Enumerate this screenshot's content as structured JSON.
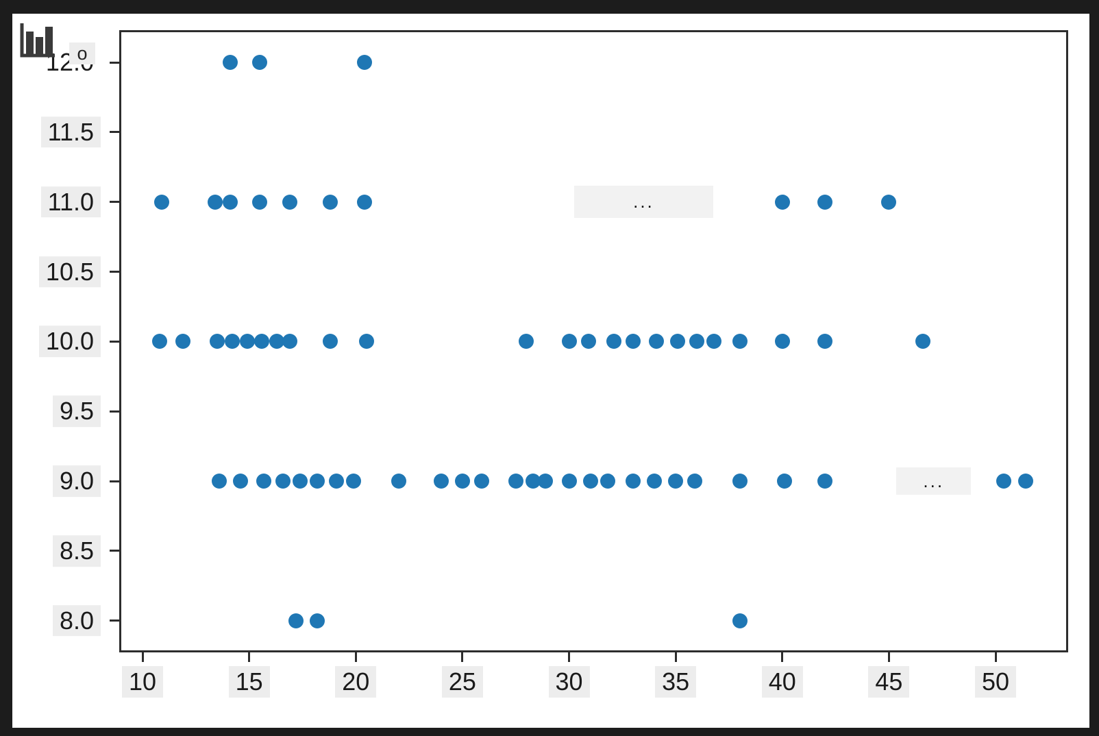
{
  "figure": {
    "outer_background": "#1c1c1c",
    "background": "#ffffff",
    "frame_color": "#2d2d2d",
    "tick_label_background": "#ededed"
  },
  "corner_overlay": {
    "icon": "bar-chart-icon",
    "icon_color": "#3a3a3a",
    "text_fragment": "o"
  },
  "chart_data": {
    "type": "scatter",
    "title": "",
    "xlabel": "",
    "ylabel": "",
    "grid": false,
    "legend": null,
    "marker_color": "#1f77b4",
    "marker_diameter_px": 22,
    "x_range": [
      8.9,
      53.4
    ],
    "y_range": [
      7.77,
      12.23
    ],
    "x_ticks": [
      10,
      15,
      20,
      25,
      30,
      35,
      40,
      45,
      50
    ],
    "x_tick_labels": [
      "10",
      "15",
      "20",
      "25",
      "30",
      "35",
      "40",
      "45",
      "50"
    ],
    "y_ticks": [
      12.0,
      11.5,
      11.0,
      10.5,
      10.0,
      9.5,
      9.0,
      8.5,
      8.0
    ],
    "y_tick_labels": [
      "12.0",
      "11.5",
      "11.0",
      "10.5",
      "10.0",
      "9.5",
      "9.0",
      "8.5",
      "8.0"
    ],
    "series": [
      {
        "y": 12,
        "x": [
          14.1,
          15.5,
          20.4
        ]
      },
      {
        "y": 11,
        "x": [
          10.9,
          13.4,
          14.1,
          15.5,
          16.9,
          18.8,
          20.4,
          40.0,
          42.0,
          45.0
        ]
      },
      {
        "y": 10,
        "x": [
          10.8,
          11.9,
          13.5,
          14.2,
          14.9,
          15.6,
          16.3,
          16.9,
          18.8,
          20.5,
          28.0,
          30.0,
          30.9,
          32.1,
          33.0,
          34.1,
          35.1,
          36.0,
          36.8,
          38.0,
          40.0,
          42.0,
          46.6
        ]
      },
      {
        "y": 9,
        "x": [
          13.6,
          14.6,
          15.7,
          16.6,
          17.4,
          18.2,
          19.1,
          19.9,
          22.0,
          24.0,
          25.0,
          25.9,
          27.5,
          28.3,
          28.9,
          30.0,
          31.0,
          31.8,
          33.0,
          34.0,
          35.0,
          35.9,
          38.0,
          40.1,
          42.0,
          50.4,
          51.4
        ]
      },
      {
        "y": 8,
        "x": [
          17.2,
          18.2,
          38.0
        ]
      }
    ],
    "annotations": [
      {
        "text": "...",
        "x_center": 33.5,
        "y_center": 11.0,
        "x_span": 6.5,
        "y_span": 0.23
      },
      {
        "text": "...",
        "x_center": 47.1,
        "y_center": 9.0,
        "x_span": 3.5,
        "y_span": 0.2
      }
    ]
  }
}
